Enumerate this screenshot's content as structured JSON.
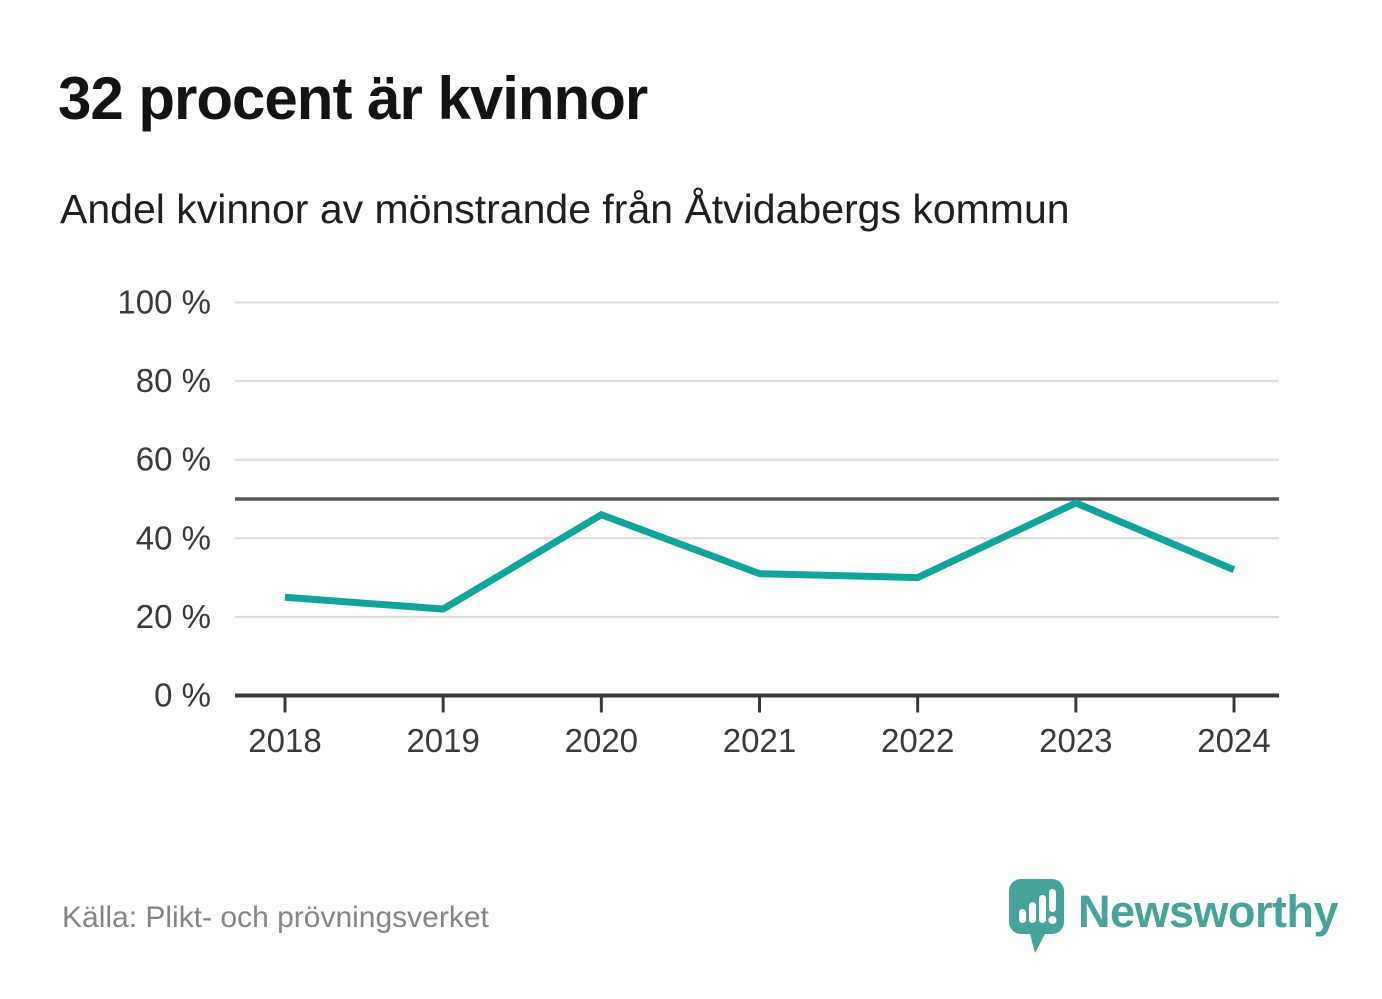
{
  "header": {
    "title": "32 procent är kvinnor",
    "subtitle": "Andel kvinnor av mönstrande från Åtvidabergs kommun"
  },
  "footer": {
    "source": "Källa: Plikt- och prövningsverket",
    "brand": "Newsworthy"
  },
  "chart_data": {
    "type": "line",
    "title": "32 procent är kvinnor",
    "subtitle": "Andel kvinnor av mönstrande från Åtvidabergs kommun",
    "categories": [
      "2018",
      "2019",
      "2020",
      "2021",
      "2022",
      "2023",
      "2024"
    ],
    "series": [
      {
        "name": "Andel kvinnor av mönstrande",
        "values": [
          25,
          22,
          46,
          31,
          30,
          49,
          32
        ]
      }
    ],
    "unit": "%",
    "ylim": [
      0,
      100
    ],
    "yticks": [
      0,
      20,
      40,
      60,
      80,
      100
    ],
    "ytick_labels": [
      "0 %",
      "20 %",
      "40 %",
      "60 %",
      "80 %",
      "100 %"
    ],
    "reference_line": {
      "value": 50
    },
    "grid": "horizontal",
    "legend": "none",
    "colors": {
      "line": "#12a39a",
      "grid": "#dcdcdc",
      "reference": "#55565a",
      "axis": "#383838",
      "tick_text": "#3a3a3a",
      "brand_teal": "#47a29b"
    }
  }
}
